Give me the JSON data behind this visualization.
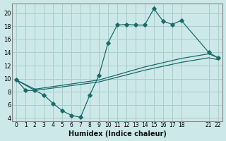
{
  "xlabel": "Humidex (Indice chaleur)",
  "xlim": [
    -0.5,
    22.5
  ],
  "ylim": [
    3.5,
    21.5
  ],
  "xtick_vals": [
    0,
    1,
    2,
    3,
    4,
    5,
    6,
    7,
    8,
    9,
    10,
    11,
    12,
    13,
    14,
    15,
    16,
    17,
    18,
    21,
    22
  ],
  "ytick_vals": [
    4,
    6,
    8,
    10,
    12,
    14,
    16,
    18,
    20
  ],
  "bg_color": "#cce8e8",
  "grid_color": "#aacccc",
  "line_color": "#1a6b6b",
  "line1_x": [
    0,
    1,
    2,
    3,
    4,
    5,
    6,
    7,
    8,
    9,
    10,
    11,
    12,
    13,
    14,
    15,
    16,
    17,
    18,
    21,
    22
  ],
  "line1_y": [
    9.8,
    8.2,
    8.2,
    7.5,
    6.2,
    5.1,
    4.4,
    4.1,
    7.5,
    10.5,
    15.5,
    18.2,
    18.3,
    18.2,
    18.2,
    20.7,
    18.8,
    18.3,
    18.9,
    14.0,
    13.2
  ],
  "line2_x": [
    0,
    2,
    9,
    14,
    18,
    21,
    22
  ],
  "line2_y": [
    9.8,
    8.4,
    9.8,
    11.8,
    13.1,
    13.8,
    13.2
  ],
  "line3_x": [
    0,
    2,
    9,
    14,
    18,
    21,
    22
  ],
  "line3_y": [
    9.8,
    8.2,
    9.5,
    11.3,
    12.5,
    13.2,
    12.9
  ]
}
